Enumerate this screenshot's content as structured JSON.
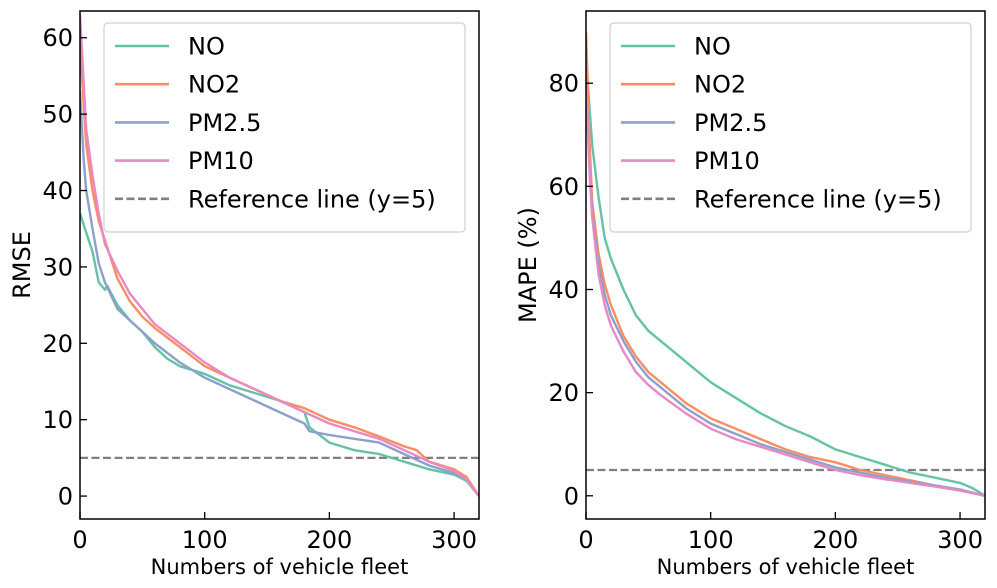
{
  "chart_data": [
    {
      "type": "line",
      "ylabel": "RMSE",
      "xlabel": "Numbers of vehicle fleet",
      "xlim": [
        0,
        320
      ],
      "ylim": [
        -3,
        63.5
      ],
      "xticks": [
        0,
        100,
        200,
        300
      ],
      "yticks": [
        0,
        10,
        20,
        30,
        40,
        50,
        60
      ],
      "legend_position": "top-right",
      "reference": {
        "label": "Reference line (y=5)",
        "y": 5,
        "color": "#808080"
      },
      "series": [
        {
          "name": "NO",
          "color": "#66c2a5",
          "points": [
            [
              0,
              37
            ],
            [
              5,
              34.5
            ],
            [
              10,
              32
            ],
            [
              15,
              28
            ],
            [
              20,
              27
            ],
            [
              22,
              27.5
            ],
            [
              30,
              25
            ],
            [
              40,
              23
            ],
            [
              50,
              21.5
            ],
            [
              60,
              19.5
            ],
            [
              70,
              18
            ],
            [
              80,
              17
            ],
            [
              100,
              16
            ],
            [
              120,
              14.5
            ],
            [
              140,
              13.5
            ],
            [
              160,
              12.5
            ],
            [
              180,
              11
            ],
            [
              184,
              9
            ],
            [
              200,
              7
            ],
            [
              220,
              6
            ],
            [
              240,
              5.5
            ],
            [
              260,
              4.5
            ],
            [
              280,
              3.5
            ],
            [
              300,
              2.8
            ],
            [
              310,
              2
            ],
            [
              320,
              0
            ]
          ]
        },
        {
          "name": "NO2",
          "color": "#fc8d62",
          "points": [
            [
              0,
              59
            ],
            [
              5,
              46
            ],
            [
              10,
              40
            ],
            [
              15,
              36
            ],
            [
              20,
              33.5
            ],
            [
              30,
              28.5
            ],
            [
              40,
              25.5
            ],
            [
              50,
              23.5
            ],
            [
              60,
              22
            ],
            [
              80,
              19.5
            ],
            [
              100,
              17
            ],
            [
              120,
              15.5
            ],
            [
              140,
              14
            ],
            [
              160,
              12.5
            ],
            [
              180,
              11.5
            ],
            [
              200,
              10
            ],
            [
              220,
              9
            ],
            [
              240,
              7.8
            ],
            [
              260,
              6.5
            ],
            [
              270,
              6
            ],
            [
              280,
              4.5
            ],
            [
              300,
              3.5
            ],
            [
              310,
              2.5
            ],
            [
              320,
              0
            ]
          ]
        },
        {
          "name": "PM2.5",
          "color": "#8da0cb",
          "points": [
            [
              0,
              53
            ],
            [
              3,
              44
            ],
            [
              5,
              40
            ],
            [
              10,
              35
            ],
            [
              15,
              30.5
            ],
            [
              20,
              28
            ],
            [
              30,
              24.5
            ],
            [
              40,
              23
            ],
            [
              50,
              21.5
            ],
            [
              60,
              20
            ],
            [
              80,
              17.5
            ],
            [
              100,
              15.5
            ],
            [
              120,
              14
            ],
            [
              140,
              12.5
            ],
            [
              160,
              11
            ],
            [
              180,
              9.5
            ],
            [
              184,
              8.5
            ],
            [
              200,
              8
            ],
            [
              220,
              7.5
            ],
            [
              240,
              7
            ],
            [
              260,
              5.5
            ],
            [
              280,
              4
            ],
            [
              300,
              3
            ],
            [
              310,
              2.2
            ],
            [
              320,
              0
            ]
          ]
        },
        {
          "name": "PM10",
          "color": "#e78ac3",
          "points": [
            [
              0,
              63
            ],
            [
              5,
              48
            ],
            [
              10,
              42
            ],
            [
              15,
              37
            ],
            [
              20,
              33
            ],
            [
              30,
              29.5
            ],
            [
              40,
              26.5
            ],
            [
              50,
              24.5
            ],
            [
              60,
              22.5
            ],
            [
              80,
              20
            ],
            [
              100,
              17.5
            ],
            [
              120,
              15.5
            ],
            [
              140,
              14
            ],
            [
              160,
              12.5
            ],
            [
              180,
              11
            ],
            [
              200,
              9.5
            ],
            [
              220,
              8.5
            ],
            [
              240,
              7.5
            ],
            [
              260,
              6
            ],
            [
              280,
              4.5
            ],
            [
              300,
              3.3
            ],
            [
              310,
              2.2
            ],
            [
              320,
              0
            ]
          ]
        }
      ]
    },
    {
      "type": "line",
      "ylabel": "MAPE (%)",
      "xlabel": "Numbers of vehicle fleet",
      "xlim": [
        0,
        320
      ],
      "ylim": [
        -4.5,
        94
      ],
      "xticks": [
        0,
        100,
        200,
        300
      ],
      "yticks": [
        0,
        20,
        40,
        60,
        80
      ],
      "legend_position": "top-right",
      "reference": {
        "label": "Reference line (y=5)",
        "y": 5,
        "color": "#808080"
      },
      "series": [
        {
          "name": "NO",
          "color": "#66c2a5",
          "points": [
            [
              0,
              85
            ],
            [
              5,
              68
            ],
            [
              10,
              58
            ],
            [
              15,
              50
            ],
            [
              20,
              46
            ],
            [
              30,
              40
            ],
            [
              40,
              35
            ],
            [
              50,
              32
            ],
            [
              60,
              30
            ],
            [
              80,
              26
            ],
            [
              100,
              22
            ],
            [
              120,
              19
            ],
            [
              140,
              16
            ],
            [
              160,
              13.5
            ],
            [
              180,
              11.5
            ],
            [
              200,
              9
            ],
            [
              220,
              7.5
            ],
            [
              240,
              6
            ],
            [
              260,
              4.5
            ],
            [
              280,
              3.5
            ],
            [
              300,
              2.5
            ],
            [
              310,
              1.5
            ],
            [
              320,
              0
            ]
          ]
        },
        {
          "name": "NO2",
          "color": "#fc8d62",
          "points": [
            [
              0,
              90
            ],
            [
              3,
              68
            ],
            [
              5,
              57
            ],
            [
              10,
              47
            ],
            [
              15,
              41
            ],
            [
              20,
              37
            ],
            [
              30,
              31
            ],
            [
              40,
              27
            ],
            [
              50,
              24
            ],
            [
              60,
              22
            ],
            [
              80,
              18
            ],
            [
              100,
              15
            ],
            [
              120,
              13
            ],
            [
              140,
              11
            ],
            [
              160,
              9
            ],
            [
              180,
              7.5
            ],
            [
              200,
              6.5
            ],
            [
              220,
              5
            ],
            [
              240,
              4
            ],
            [
              260,
              3
            ],
            [
              280,
              2
            ],
            [
              300,
              1.2
            ],
            [
              320,
              0
            ]
          ]
        },
        {
          "name": "PM2.5",
          "color": "#8da0cb",
          "points": [
            [
              0,
              80
            ],
            [
              3,
              63
            ],
            [
              5,
              55
            ],
            [
              10,
              45
            ],
            [
              15,
              39
            ],
            [
              20,
              35
            ],
            [
              30,
              30
            ],
            [
              40,
              26
            ],
            [
              50,
              23
            ],
            [
              60,
              21
            ],
            [
              80,
              17
            ],
            [
              100,
              14
            ],
            [
              120,
              12
            ],
            [
              140,
              10
            ],
            [
              160,
              8.5
            ],
            [
              180,
              7
            ],
            [
              200,
              5.5
            ],
            [
              220,
              4.5
            ],
            [
              240,
              3.5
            ],
            [
              260,
              2.8
            ],
            [
              280,
              2
            ],
            [
              300,
              1.2
            ],
            [
              320,
              0
            ]
          ]
        },
        {
          "name": "PM10",
          "color": "#e78ac3",
          "points": [
            [
              0,
              80
            ],
            [
              3,
              62
            ],
            [
              5,
              54
            ],
            [
              10,
              43
            ],
            [
              15,
              37
            ],
            [
              20,
              33
            ],
            [
              30,
              28
            ],
            [
              40,
              24
            ],
            [
              50,
              21.5
            ],
            [
              60,
              19.5
            ],
            [
              80,
              16
            ],
            [
              100,
              13
            ],
            [
              120,
              11
            ],
            [
              140,
              9.5
            ],
            [
              160,
              8
            ],
            [
              180,
              6.5
            ],
            [
              200,
              5
            ],
            [
              220,
              4
            ],
            [
              240,
              3.2
            ],
            [
              260,
              2.5
            ],
            [
              280,
              1.8
            ],
            [
              300,
              1
            ],
            [
              320,
              0
            ]
          ]
        }
      ]
    }
  ]
}
